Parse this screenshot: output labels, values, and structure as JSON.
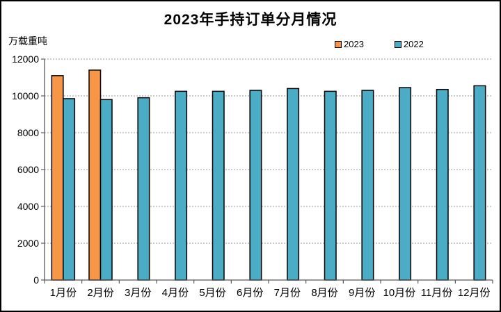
{
  "page": {
    "title": "2023年手持订单分月情况",
    "unit_label": "万载重吨"
  },
  "legend": {
    "items": [
      {
        "label": "2023",
        "color": "#F79646"
      },
      {
        "label": "2022",
        "color": "#4BACC6"
      }
    ]
  },
  "chart_data": {
    "type": "bar",
    "title": "2023年手持订单分月情况",
    "xlabel": "",
    "ylabel": "万载重吨",
    "categories": [
      "1月份",
      "2月份",
      "3月份",
      "4月份",
      "5月份",
      "6月份",
      "7月份",
      "8月份",
      "9月份",
      "10月份",
      "11月份",
      "12月份"
    ],
    "series": [
      {
        "name": "2023",
        "color": "#F79646",
        "values": [
          11100,
          11400,
          null,
          null,
          null,
          null,
          null,
          null,
          null,
          null,
          null,
          null
        ]
      },
      {
        "name": "2022",
        "color": "#4BACC6",
        "values": [
          9850,
          9800,
          9900,
          10250,
          10250,
          10300,
          10400,
          10250,
          10300,
          10450,
          10350,
          10550
        ]
      }
    ],
    "ylim": [
      0,
      12000
    ],
    "ytick_step": 2000,
    "grid": true,
    "gridline_color": "#999999",
    "bar_border_color": "#000000",
    "axis_color": "#595959",
    "legend_position": "top-right"
  }
}
